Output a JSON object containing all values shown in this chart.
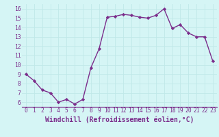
{
  "x": [
    0,
    1,
    2,
    3,
    4,
    5,
    6,
    7,
    8,
    9,
    10,
    11,
    12,
    13,
    14,
    15,
    16,
    17,
    18,
    19,
    20,
    21,
    22,
    23
  ],
  "y": [
    9.0,
    8.3,
    7.3,
    7.0,
    6.0,
    6.3,
    5.8,
    6.3,
    9.7,
    11.7,
    15.1,
    15.2,
    15.4,
    15.3,
    15.1,
    15.0,
    15.3,
    16.0,
    13.9,
    14.3,
    13.4,
    13.0,
    13.0,
    10.4
  ],
  "line_color": "#7b2d8b",
  "marker": "D",
  "marker_size": 2.2,
  "xlabel": "Windchill (Refroidissement éolien,°C)",
  "xlabel_fontsize": 7,
  "ylim": [
    5.5,
    16.5
  ],
  "xlim": [
    -0.5,
    23.5
  ],
  "yticks": [
    6,
    7,
    8,
    9,
    10,
    11,
    12,
    13,
    14,
    15,
    16
  ],
  "xticks": [
    0,
    1,
    2,
    3,
    4,
    5,
    6,
    7,
    8,
    9,
    10,
    11,
    12,
    13,
    14,
    15,
    16,
    17,
    18,
    19,
    20,
    21,
    22,
    23
  ],
  "bg_color": "#d5f5f5",
  "grid_color": "#c0e8e8",
  "tick_color": "#7b2d8b",
  "tick_fontsize": 5.8,
  "linewidth": 1.0,
  "xlabel_color": "#7b2d8b"
}
